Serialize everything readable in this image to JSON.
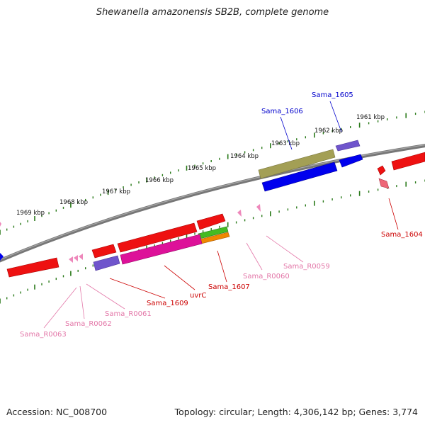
{
  "title": "Shewanella amazonensis SB2B, complete genome",
  "footer": {
    "accession": "Accession: NC_008700",
    "summary": "Topology: circular; Length: 4,306,142 bp; Genes: 3,774"
  },
  "scale_labels": [
    {
      "text": "1961 kbp",
      "at": 0.865
    },
    {
      "text": "1962 kbp",
      "at": 0.77
    },
    {
      "text": "1963 kbp",
      "at": 0.67
    },
    {
      "text": "1964 kbp",
      "at": 0.57
    },
    {
      "text": "1965 kbp",
      "at": 0.47
    },
    {
      "text": "1966 kbp",
      "at": 0.37
    },
    {
      "text": "1967 kbp",
      "at": 0.27
    },
    {
      "text": "1968 kbp",
      "at": 0.17
    },
    {
      "text": "1969 kbp",
      "at": 0.07
    }
  ],
  "gene_labels": [
    {
      "text": "Sama_1605",
      "color": "#0000cc"
    },
    {
      "text": "Sama_1606",
      "color": "#0000cc"
    },
    {
      "text": "Sama_1604",
      "color": "#cc0000"
    },
    {
      "text": "Sama_R0059",
      "color": "#e377a8"
    },
    {
      "text": "Sama_R0060",
      "color": "#e377a8"
    },
    {
      "text": "Sama_1607",
      "color": "#cc0000"
    },
    {
      "text": "uvrC",
      "color": "#cc0000"
    },
    {
      "text": "Sama_1609",
      "color": "#cc0000"
    },
    {
      "text": "Sama_R0061",
      "color": "#e377a8"
    },
    {
      "text": "Sama_R0062",
      "color": "#e377a8"
    },
    {
      "text": "Sama_R0063",
      "color": "#e377a8"
    }
  ],
  "colors": {
    "backbone": "#777777",
    "tick": "#2a7a1a",
    "cds_red": "#ee1111",
    "cds_blue": "#0000ee",
    "cds_olive": "#a39f55",
    "cds_purple": "#6f55cc",
    "cds_magenta": "#dd1199",
    "cds_green": "#44bb22",
    "cds_orange": "#ee8800",
    "rna_pink": "#ee88bb"
  }
}
